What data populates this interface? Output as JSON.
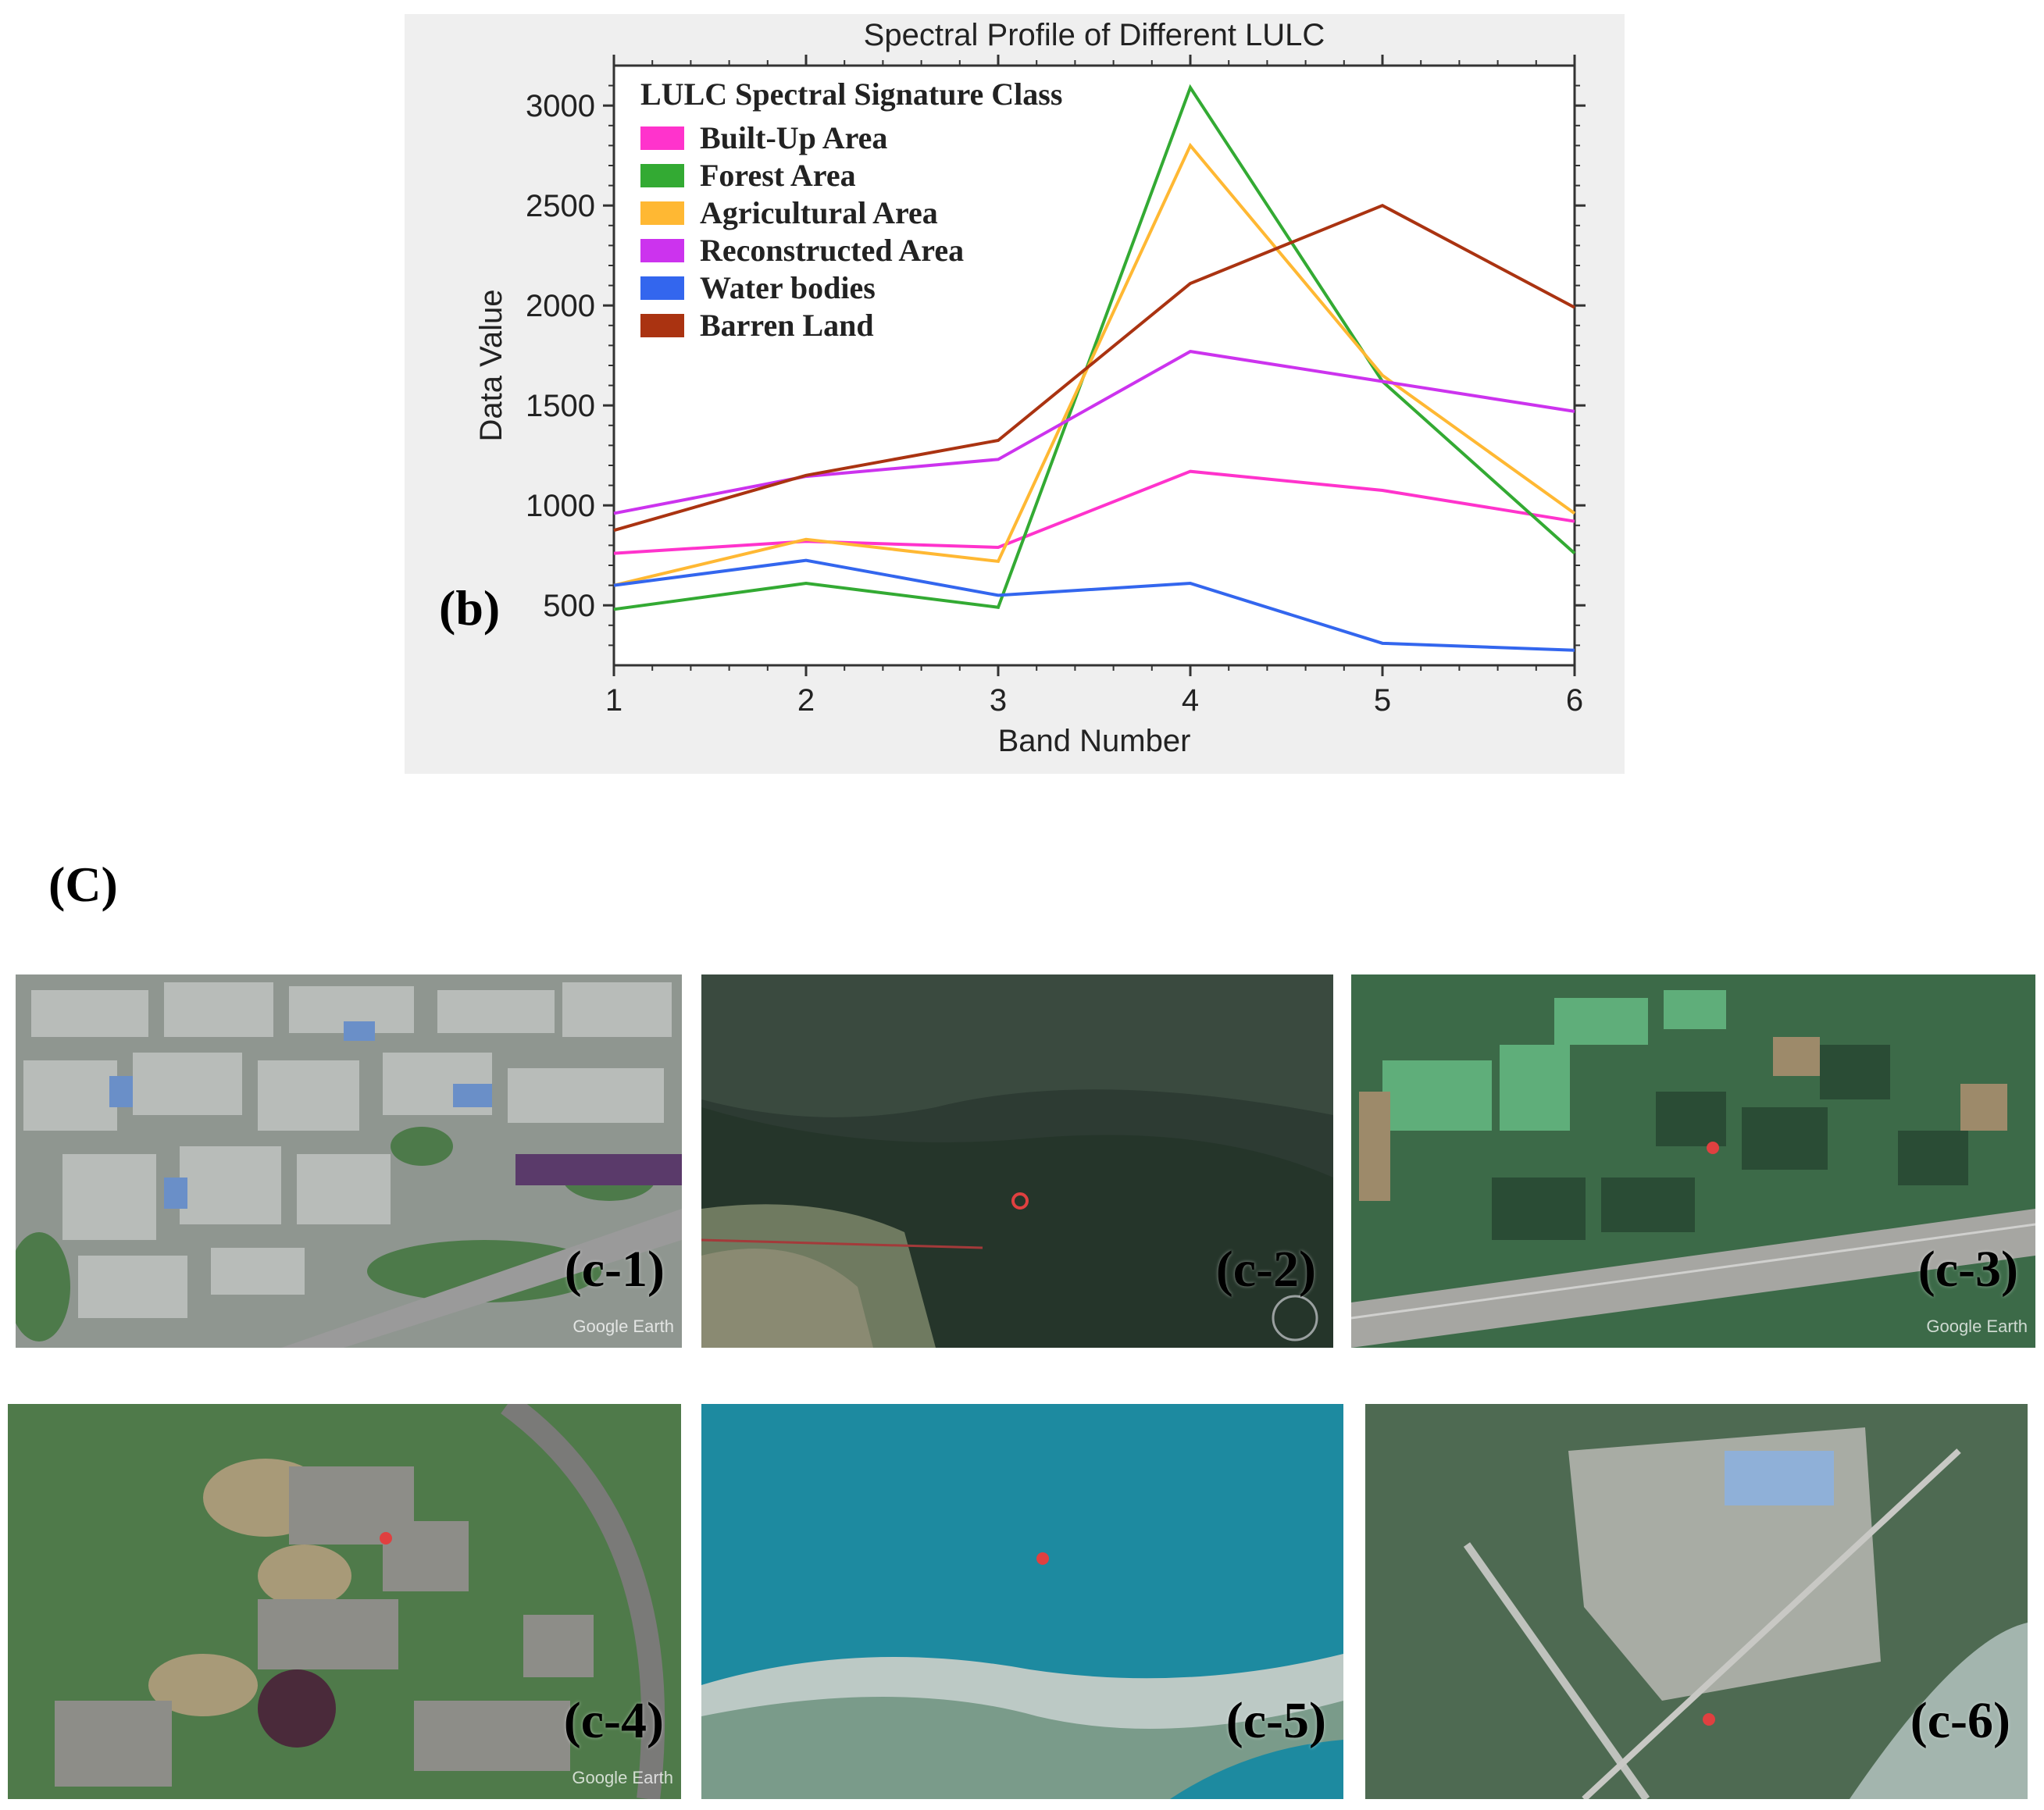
{
  "panel_b_label": "(b)",
  "panel_c_label": "(C)",
  "chart_data": {
    "type": "line",
    "title": "Spectral Profile of Different LULC",
    "xlabel": "Band Number",
    "ylabel": "Data Value",
    "xlim": [
      1,
      6
    ],
    "ylim": [
      200,
      3200
    ],
    "x": [
      1,
      2,
      3,
      4,
      5,
      6
    ],
    "xticks": [
      1,
      2,
      3,
      4,
      5,
      6
    ],
    "yticks": [
      500,
      1000,
      1500,
      2000,
      2500,
      3000
    ],
    "legend_title": "LULC Spectral Signature Class",
    "legend_position": "top-left",
    "grid": false,
    "series": [
      {
        "name": "Built-Up Area",
        "color": "#ff33cc",
        "values": [
          760,
          820,
          790,
          1170,
          1075,
          920
        ]
      },
      {
        "name": "Forest Area",
        "color": "#33aa33",
        "values": [
          480,
          610,
          490,
          3090,
          1620,
          760
        ]
      },
      {
        "name": "Agricultural Area",
        "color": "#ffb833",
        "values": [
          600,
          830,
          720,
          2800,
          1650,
          960
        ]
      },
      {
        "name": "Reconstructed Area",
        "color": "#cc33ee",
        "values": [
          960,
          1145,
          1230,
          1770,
          1620,
          1470
        ]
      },
      {
        "name": "Water bodies",
        "color": "#3366ee",
        "values": [
          600,
          725,
          550,
          610,
          310,
          275
        ]
      },
      {
        "name": "Barren Land",
        "color": "#aa3311",
        "values": [
          875,
          1150,
          1325,
          2110,
          2500,
          1990
        ]
      }
    ]
  },
  "photos": [
    {
      "label": "(c-1)",
      "watermark": "Google Earth",
      "scene": "built-up"
    },
    {
      "label": "(c-2)",
      "watermark": "",
      "scene": "forest"
    },
    {
      "label": "(c-3)",
      "watermark": "Google Earth",
      "scene": "agricultural"
    },
    {
      "label": "(c-4)",
      "watermark": "Google Earth",
      "scene": "reconstructed"
    },
    {
      "label": "(c-5)",
      "watermark": "",
      "scene": "water"
    },
    {
      "label": "(c-6)",
      "watermark": "",
      "scene": "barren"
    }
  ]
}
